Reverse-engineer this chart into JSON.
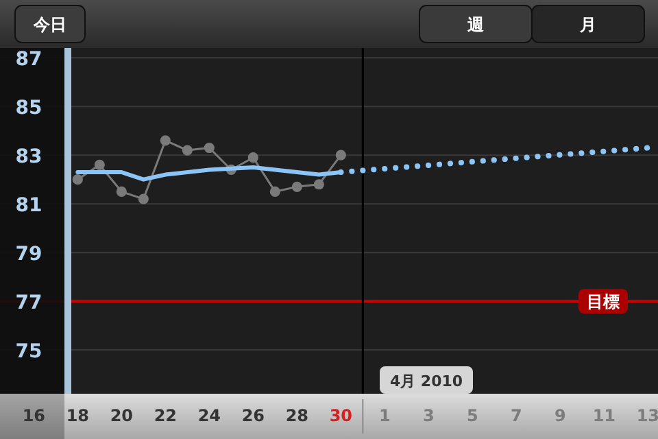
{
  "chart_data": {
    "type": "line",
    "x": [
      "2010-03-18",
      "2010-03-19",
      "2010-03-20",
      "2010-03-21",
      "2010-03-22",
      "2010-03-23",
      "2010-03-24",
      "2010-03-25",
      "2010-03-26",
      "2010-03-27",
      "2010-03-28",
      "2010-03-29",
      "2010-03-30"
    ],
    "series": [
      {
        "color": "#7a7a7a",
        "marker": "circle",
        "values": [
          82.0,
          82.6,
          81.5,
          81.2,
          83.6,
          83.2,
          83.3,
          82.4,
          82.9,
          81.5,
          81.7,
          81.8,
          83.0
        ]
      },
      {
        "color": "#8cc4f5",
        "x": [
          "2010-03-18",
          "2010-03-20",
          "2010-03-21",
          "2010-03-22",
          "2010-03-24",
          "2010-03-26",
          "2010-03-28",
          "2010-03-29",
          "2010-03-30"
        ],
        "values": [
          82.3,
          82.3,
          82.0,
          82.2,
          82.4,
          82.5,
          82.3,
          82.2,
          82.3
        ]
      },
      {
        "color": "#8cc4f5",
        "line_style": "dotted",
        "x": [
          "2010-03-30",
          "2010-04-13"
        ],
        "values": [
          82.3,
          83.3
        ]
      }
    ],
    "xlim": [
      "2010-03-14T11:00",
      "2010-04-13T11:00"
    ],
    "xticks": [
      {
        "value": "2010-03-16",
        "label": "16"
      },
      {
        "value": "2010-03-18",
        "label": "18"
      },
      {
        "value": "2010-03-20",
        "label": "20"
      },
      {
        "value": "2010-03-22",
        "label": "22"
      },
      {
        "value": "2010-03-24",
        "label": "24"
      },
      {
        "value": "2010-03-26",
        "label": "26"
      },
      {
        "value": "2010-03-28",
        "label": "28"
      },
      {
        "value": "2010-03-30",
        "label": "30"
      },
      {
        "value": "2010-04-01",
        "label": "1"
      },
      {
        "value": "2010-04-03",
        "label": "3"
      },
      {
        "value": "2010-04-05",
        "label": "5"
      },
      {
        "value": "2010-04-07",
        "label": "7"
      },
      {
        "value": "2010-04-09",
        "label": "9"
      },
      {
        "value": "2010-04-11",
        "label": "11"
      },
      {
        "value": "2010-04-13",
        "label": "13"
      }
    ],
    "ylim": [
      73.2,
      87.4
    ],
    "yticks": [
      75,
      77,
      79,
      81,
      83,
      85,
      87
    ],
    "grid": "y",
    "ref_lines": [
      {
        "axis": "y",
        "value": 77,
        "label": "目標",
        "color": "#cc0000"
      },
      {
        "axis": "x",
        "value": "2010-03-31T00:00",
        "color": "#000000"
      }
    ],
    "annotations": [
      "今日",
      "週",
      "月",
      "4月 2010"
    ]
  }
}
